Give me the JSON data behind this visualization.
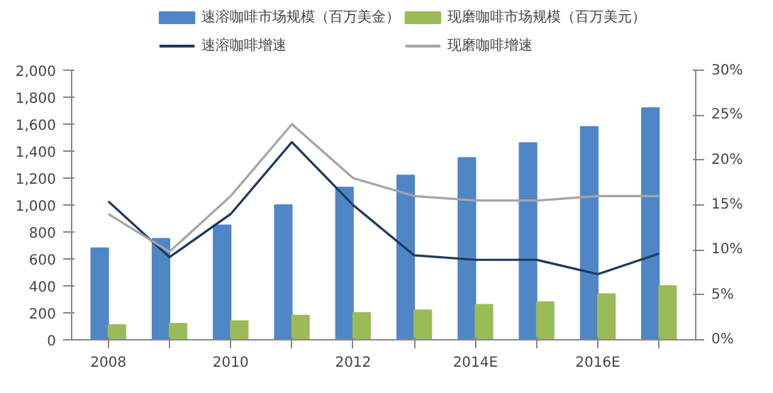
{
  "chart_data": {
    "type": "bar",
    "categories": [
      "2008",
      null,
      "2010",
      null,
      "2012",
      null,
      "2014E",
      null,
      "2016E",
      null
    ],
    "series": [
      {
        "name": "速溶咖啡市场规模（百万美金）",
        "color": "#4f86c6",
        "values": [
          680,
          750,
          850,
          1000,
          1130,
          1220,
          1350,
          1460,
          1580,
          1720
        ]
      },
      {
        "name": "现磨咖啡市场规模（百万美元）",
        "color": "#9bbb59",
        "values": [
          110,
          120,
          140,
          180,
          200,
          220,
          260,
          280,
          340,
          400
        ]
      },
      {
        "name": "速溶咖啡增速",
        "type": "line",
        "axis": "y2",
        "color": "#1f3a5f",
        "values": [
          15.4,
          9.2,
          14,
          22,
          15,
          9.4,
          8.9,
          8.9,
          7.3,
          9.6
        ]
      },
      {
        "name": "现磨咖啡增速",
        "type": "line",
        "axis": "y2",
        "color": "#a6a6a6",
        "values": [
          14,
          9.8,
          16,
          24,
          18,
          16,
          15.5,
          15.5,
          16,
          16
        ]
      }
    ],
    "ylim": [
      0,
      2000
    ],
    "yticks": [
      {
        "value": 0,
        "label": "0"
      },
      {
        "value": 200,
        "label": "200"
      },
      {
        "value": 400,
        "label": "400"
      },
      {
        "value": 600,
        "label": "600"
      },
      {
        "value": 800,
        "label": "800"
      },
      {
        "value": 1000,
        "label": "1,000"
      },
      {
        "value": 1200,
        "label": "1,200"
      },
      {
        "value": 1400,
        "label": "1,400"
      },
      {
        "value": 1600,
        "label": "1,600"
      },
      {
        "value": 1800,
        "label": "1,800"
      },
      {
        "value": 2000,
        "label": "2,000"
      }
    ],
    "y2lim": [
      0,
      30
    ],
    "y2ticks": [
      {
        "value": 0,
        "label": "0%"
      },
      {
        "value": 5,
        "label": "5%"
      },
      {
        "value": 10,
        "label": "10%"
      },
      {
        "value": 15,
        "label": "15%"
      },
      {
        "value": 20,
        "label": "20%"
      },
      {
        "value": 25,
        "label": "25%"
      },
      {
        "value": 30,
        "label": "30%"
      }
    ],
    "grid": false,
    "legend": "top"
  }
}
